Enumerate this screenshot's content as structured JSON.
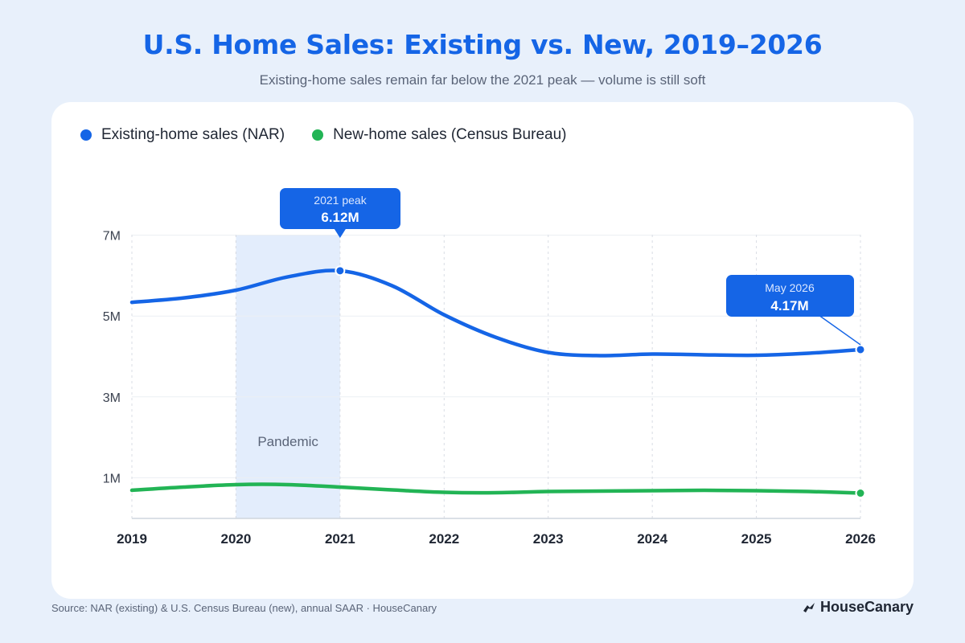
{
  "header": {
    "title": "U.S. Home Sales: Existing vs. New, 2019–2026",
    "subtitle": "Existing-home sales remain far below the 2021 peak — volume is still soft"
  },
  "footer": {
    "source": "Source: NAR (existing) & U.S. Census Bureau (new), annual SAAR · HouseCanary",
    "brand": "HouseCanary"
  },
  "colors": {
    "existing": "#1565e6",
    "new": "#22b455",
    "shade": "#e3edfc",
    "callout": "#1565e6"
  },
  "chart_data": {
    "type": "line",
    "x": [
      2019,
      2020,
      2021,
      2022,
      2023,
      2024,
      2025,
      2026
    ],
    "xlim": [
      2019,
      2026
    ],
    "ylim": [
      0,
      7
    ],
    "yticks": [
      {
        "value": 1,
        "label": "1M"
      },
      {
        "value": 3,
        "label": "3M"
      },
      {
        "value": 5,
        "label": "5M"
      },
      {
        "value": 7,
        "label": "7M"
      }
    ],
    "grid": true,
    "legend_placement": "top-left",
    "series": [
      {
        "name": "Existing-home sales (NAR)",
        "color": "#1565e6",
        "points": [
          [
            2019,
            5.34
          ],
          [
            2019.5,
            5.45
          ],
          [
            2020,
            5.64
          ],
          [
            2020.5,
            5.97
          ],
          [
            2021,
            6.12
          ],
          [
            2021.5,
            5.75
          ],
          [
            2022,
            5.03
          ],
          [
            2022.5,
            4.47
          ],
          [
            2023,
            4.1
          ],
          [
            2023.5,
            4.02
          ],
          [
            2024,
            4.06
          ],
          [
            2024.5,
            4.04
          ],
          [
            2025,
            4.03
          ],
          [
            2025.5,
            4.08
          ],
          [
            2026,
            4.17
          ]
        ]
      },
      {
        "name": "New-home sales (Census Bureau)",
        "color": "#22b455",
        "points": [
          [
            2019,
            0.69
          ],
          [
            2019.5,
            0.77
          ],
          [
            2020,
            0.83
          ],
          [
            2020.5,
            0.83
          ],
          [
            2021,
            0.77
          ],
          [
            2021.5,
            0.7
          ],
          [
            2022,
            0.64
          ],
          [
            2022.5,
            0.63
          ],
          [
            2023,
            0.66
          ],
          [
            2023.5,
            0.67
          ],
          [
            2024,
            0.68
          ],
          [
            2024.5,
            0.69
          ],
          [
            2025,
            0.68
          ],
          [
            2025.5,
            0.66
          ],
          [
            2026,
            0.62
          ]
        ]
      }
    ],
    "shaded_range": {
      "from": 2020,
      "to": 2021,
      "label": "Pandemic"
    },
    "annotations": [
      {
        "x": 2021,
        "y": 6.12,
        "label": "2021 peak",
        "value": "6.12M"
      },
      {
        "x": 2026,
        "y": 4.17,
        "label": "May 2026",
        "value": "4.17M"
      }
    ]
  }
}
